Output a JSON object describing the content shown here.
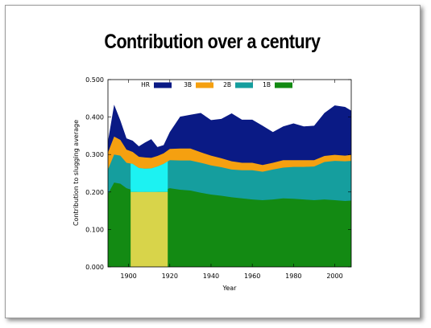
{
  "slide": {
    "title": "Contribution over a century"
  },
  "chart_data": {
    "type": "area",
    "stacked": true,
    "xlabel": "Year",
    "ylabel": "Contribution to slugging average",
    "xlim": [
      1890,
      2008
    ],
    "ylim": [
      0,
      0.5
    ],
    "xticks": [
      1900,
      1920,
      1940,
      1960,
      1980,
      2000
    ],
    "yticks": [
      "0.000",
      "0.100",
      "0.200",
      "0.300",
      "0.400",
      "0.500"
    ],
    "legend_position": "top",
    "legend": [
      "HR",
      "3B",
      "2B",
      "1B"
    ],
    "x": [
      1890,
      1893,
      1896,
      1899,
      1902,
      1905,
      1908,
      1911,
      1914,
      1917,
      1920,
      1925,
      1930,
      1935,
      1940,
      1945,
      1950,
      1955,
      1960,
      1965,
      1970,
      1975,
      1980,
      1985,
      1990,
      1995,
      2000,
      2005,
      2008
    ],
    "series": [
      {
        "name": "1B",
        "color": "#138a13",
        "values": [
          0.195,
          0.225,
          0.222,
          0.21,
          0.205,
          0.198,
          0.2,
          0.198,
          0.2,
          0.205,
          0.21,
          0.206,
          0.204,
          0.198,
          0.193,
          0.19,
          0.186,
          0.183,
          0.18,
          0.178,
          0.18,
          0.183,
          0.182,
          0.18,
          0.178,
          0.18,
          0.178,
          0.176,
          0.177
        ]
      },
      {
        "name": "2B",
        "color": "#159e9e",
        "values": [
          0.065,
          0.075,
          0.075,
          0.068,
          0.07,
          0.066,
          0.062,
          0.065,
          0.068,
          0.07,
          0.075,
          0.078,
          0.08,
          0.08,
          0.078,
          0.076,
          0.074,
          0.075,
          0.078,
          0.076,
          0.08,
          0.082,
          0.085,
          0.087,
          0.09,
          0.1,
          0.105,
          0.106,
          0.106
        ]
      },
      {
        "name": "3B",
        "color": "#f5a010",
        "values": [
          0.045,
          0.048,
          0.042,
          0.035,
          0.032,
          0.03,
          0.03,
          0.028,
          0.028,
          0.028,
          0.03,
          0.032,
          0.032,
          0.028,
          0.026,
          0.024,
          0.022,
          0.02,
          0.02,
          0.018,
          0.018,
          0.02,
          0.018,
          0.018,
          0.017,
          0.016,
          0.016,
          0.015,
          0.016
        ]
      },
      {
        "name": "HR",
        "color": "#0a1a85",
        "values": [
          0.03,
          0.085,
          0.052,
          0.03,
          0.03,
          0.028,
          0.04,
          0.05,
          0.024,
          0.022,
          0.045,
          0.085,
          0.09,
          0.105,
          0.095,
          0.105,
          0.128,
          0.115,
          0.115,
          0.105,
          0.082,
          0.09,
          0.098,
          0.09,
          0.092,
          0.115,
          0.132,
          0.13,
          0.118
        ]
      }
    ],
    "highlight": {
      "x_range": [
        1901,
        1919
      ],
      "fill_below": "#d8d44a",
      "fill_above": "#1cf2f2",
      "split_y": 0.2
    }
  }
}
